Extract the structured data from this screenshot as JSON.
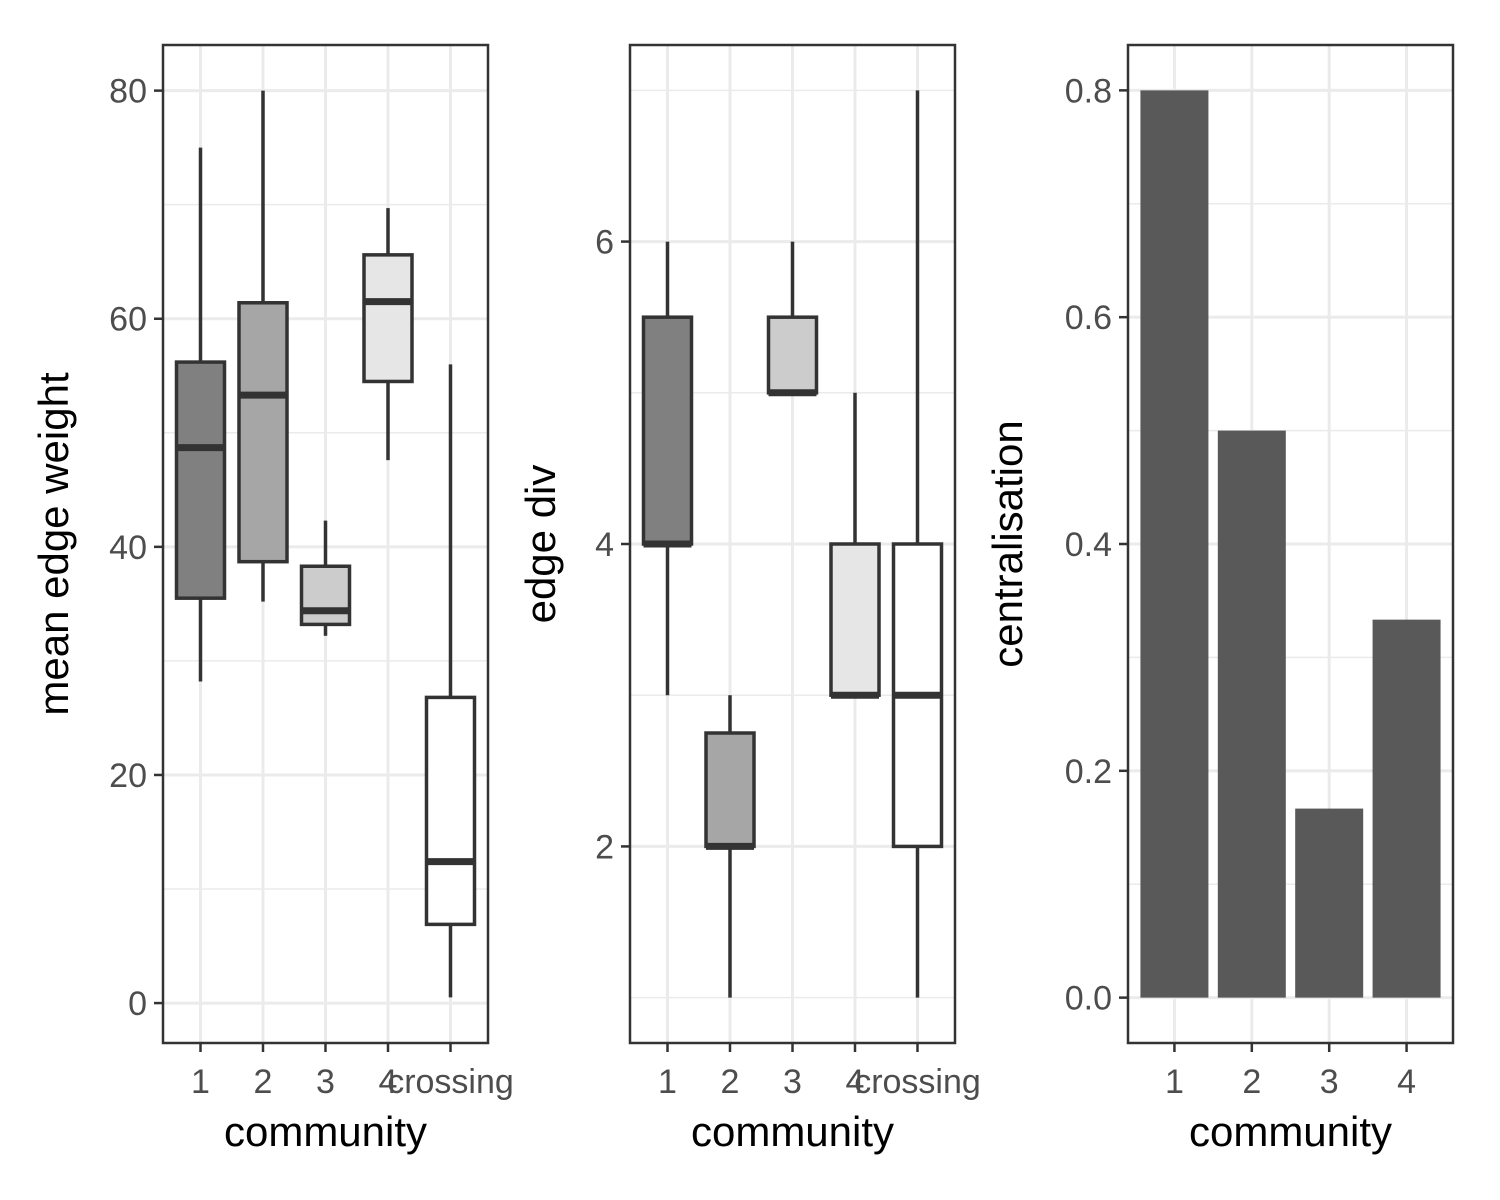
{
  "chart_data": [
    {
      "type": "boxplot",
      "xlabel": "community",
      "ylabel": "mean edge weight",
      "categories": [
        "1",
        "2",
        "3",
        "4",
        "crossing"
      ],
      "yticks": [
        0,
        20,
        40,
        60,
        80
      ],
      "ylim": [
        -3.5,
        84
      ],
      "grid": true,
      "boxes": [
        {
          "category": "1",
          "min": 28.2,
          "q1": 35.5,
          "median": 48.7,
          "q3": 56.2,
          "max": 75.0,
          "fill": "#808080"
        },
        {
          "category": "2",
          "min": 35.2,
          "q1": 38.7,
          "median": 53.3,
          "q3": 61.4,
          "max": 80.0,
          "fill": "#a6a6a6"
        },
        {
          "category": "3",
          "min": 32.2,
          "q1": 33.2,
          "median": 34.4,
          "q3": 38.3,
          "max": 42.3,
          "fill": "#cccccc"
        },
        {
          "category": "4",
          "min": 47.6,
          "q1": 54.5,
          "median": 61.5,
          "q3": 65.6,
          "max": 69.7,
          "fill": "#e6e6e6"
        },
        {
          "category": "crossing",
          "min": 0.5,
          "q1": 6.9,
          "median": 12.4,
          "q3": 26.8,
          "max": 56.0,
          "fill": "#ffffff"
        }
      ]
    },
    {
      "type": "boxplot",
      "xlabel": "community",
      "ylabel": "edge div",
      "categories": [
        "1",
        "2",
        "3",
        "4",
        "crossing"
      ],
      "yticks": [
        2,
        4,
        6
      ],
      "ylim": [
        0.7,
        7.3
      ],
      "grid": true,
      "boxes": [
        {
          "category": "1",
          "min": 3,
          "q1": 4,
          "median": 4,
          "q3": 5.5,
          "max": 6,
          "fill": "#808080"
        },
        {
          "category": "2",
          "min": 1,
          "q1": 2,
          "median": 2,
          "q3": 2.75,
          "max": 3,
          "fill": "#a6a6a6"
        },
        {
          "category": "3",
          "min": 5,
          "q1": 5,
          "median": 5,
          "q3": 5.5,
          "max": 6,
          "fill": "#cccccc"
        },
        {
          "category": "4",
          "min": 3,
          "q1": 3,
          "median": 3,
          "q3": 4,
          "max": 5,
          "fill": "#e6e6e6"
        },
        {
          "category": "crossing",
          "min": 1,
          "q1": 2,
          "median": 3,
          "q3": 4,
          "max": 7,
          "fill": "#ffffff"
        }
      ]
    },
    {
      "type": "bar",
      "xlabel": "community",
      "ylabel": "centralisation",
      "categories": [
        "1",
        "2",
        "3",
        "4"
      ],
      "values": [
        0.8,
        0.5,
        0.1667,
        0.3333
      ],
      "yticks": [
        "0.0",
        "0.2",
        "0.4",
        "0.6",
        "0.8"
      ],
      "ylim": [
        -0.04,
        0.84
      ],
      "grid": true,
      "bar_color": "#595959"
    }
  ]
}
